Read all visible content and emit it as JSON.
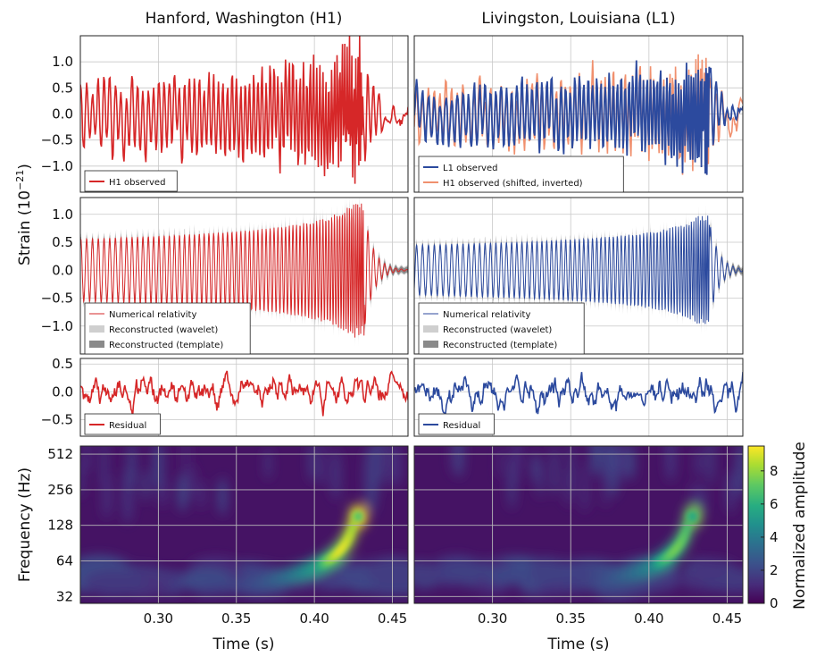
{
  "titles": {
    "left": "Hanford, Washington (H1)",
    "right": "Livingston, Louisiana (L1)"
  },
  "axes": {
    "strain_label_main": "Strain (10",
    "strain_label_exp": "−21",
    "strain_label_end": ")",
    "frequency_label": "Frequency (Hz)",
    "time_label": "Time (s)",
    "colorbar_label": "Normalized amplitude"
  },
  "colors": {
    "h1": "#d62728",
    "l1": "#2c4a9e",
    "h1_shifted": "#f0906e",
    "wavelet": "#cfcfcf",
    "template": "#8a8a8a"
  },
  "chart_data": [
    {
      "id": "row1",
      "type": "line",
      "ylabel": "",
      "xlim": [
        0.25,
        0.46
      ],
      "ylim": [
        -1.5,
        1.5
      ],
      "yticks": [
        "1.0",
        "0.5",
        "0.0",
        "−0.5",
        "−1.0"
      ],
      "ytick_values": [
        1.0,
        0.5,
        0.0,
        -0.5,
        -1.0
      ],
      "xticks": [
        0.3,
        0.35,
        0.4,
        0.45
      ],
      "grid": true,
      "legend_left": [
        "H1 observed"
      ],
      "legend_right": [
        "L1 observed",
        "H1 observed (shifted, inverted)"
      ]
    },
    {
      "id": "row2",
      "type": "line",
      "xlim": [
        0.25,
        0.46
      ],
      "ylim": [
        -1.5,
        1.3
      ],
      "yticks": [
        "1.0",
        "0.5",
        "0.0",
        "−0.5",
        "−1.0"
      ],
      "ytick_values": [
        1.0,
        0.5,
        0.0,
        -0.5,
        -1.0
      ],
      "xticks": [
        0.3,
        0.35,
        0.4,
        0.45
      ],
      "grid": true,
      "legend": [
        "Numerical relativity",
        "Reconstructed (wavelet)",
        "Reconstructed (template)"
      ]
    },
    {
      "id": "row3",
      "type": "line",
      "xlim": [
        0.25,
        0.46
      ],
      "ylim": [
        -0.8,
        0.6
      ],
      "yticks": [
        "0.5",
        "0.0",
        "−0.5"
      ],
      "ytick_values": [
        0.5,
        0.0,
        -0.5
      ],
      "xticks": [
        0.3,
        0.35,
        0.4,
        0.45
      ],
      "grid": true,
      "legend": [
        "Residual"
      ]
    },
    {
      "id": "row4",
      "type": "heatmap",
      "xlim": [
        0.25,
        0.46
      ],
      "yticks": [
        "512",
        "256",
        "128",
        "64",
        "32"
      ],
      "ytick_values": [
        512,
        256,
        128,
        64,
        32
      ],
      "ylim": [
        28,
        600
      ],
      "xticks": [
        "0.30",
        "0.35",
        "0.40",
        "0.45"
      ],
      "xtick_values": [
        0.3,
        0.35,
        0.4,
        0.45
      ],
      "colorbar_ticks": [
        "8",
        "6",
        "4",
        "2",
        "0"
      ],
      "colorbar_values": [
        8,
        6,
        4,
        2,
        0
      ],
      "colorbar_range": [
        0,
        9.5
      ],
      "peak_amplitude_h1": 9.2,
      "peak_amplitude_l1": 7.5
    }
  ]
}
